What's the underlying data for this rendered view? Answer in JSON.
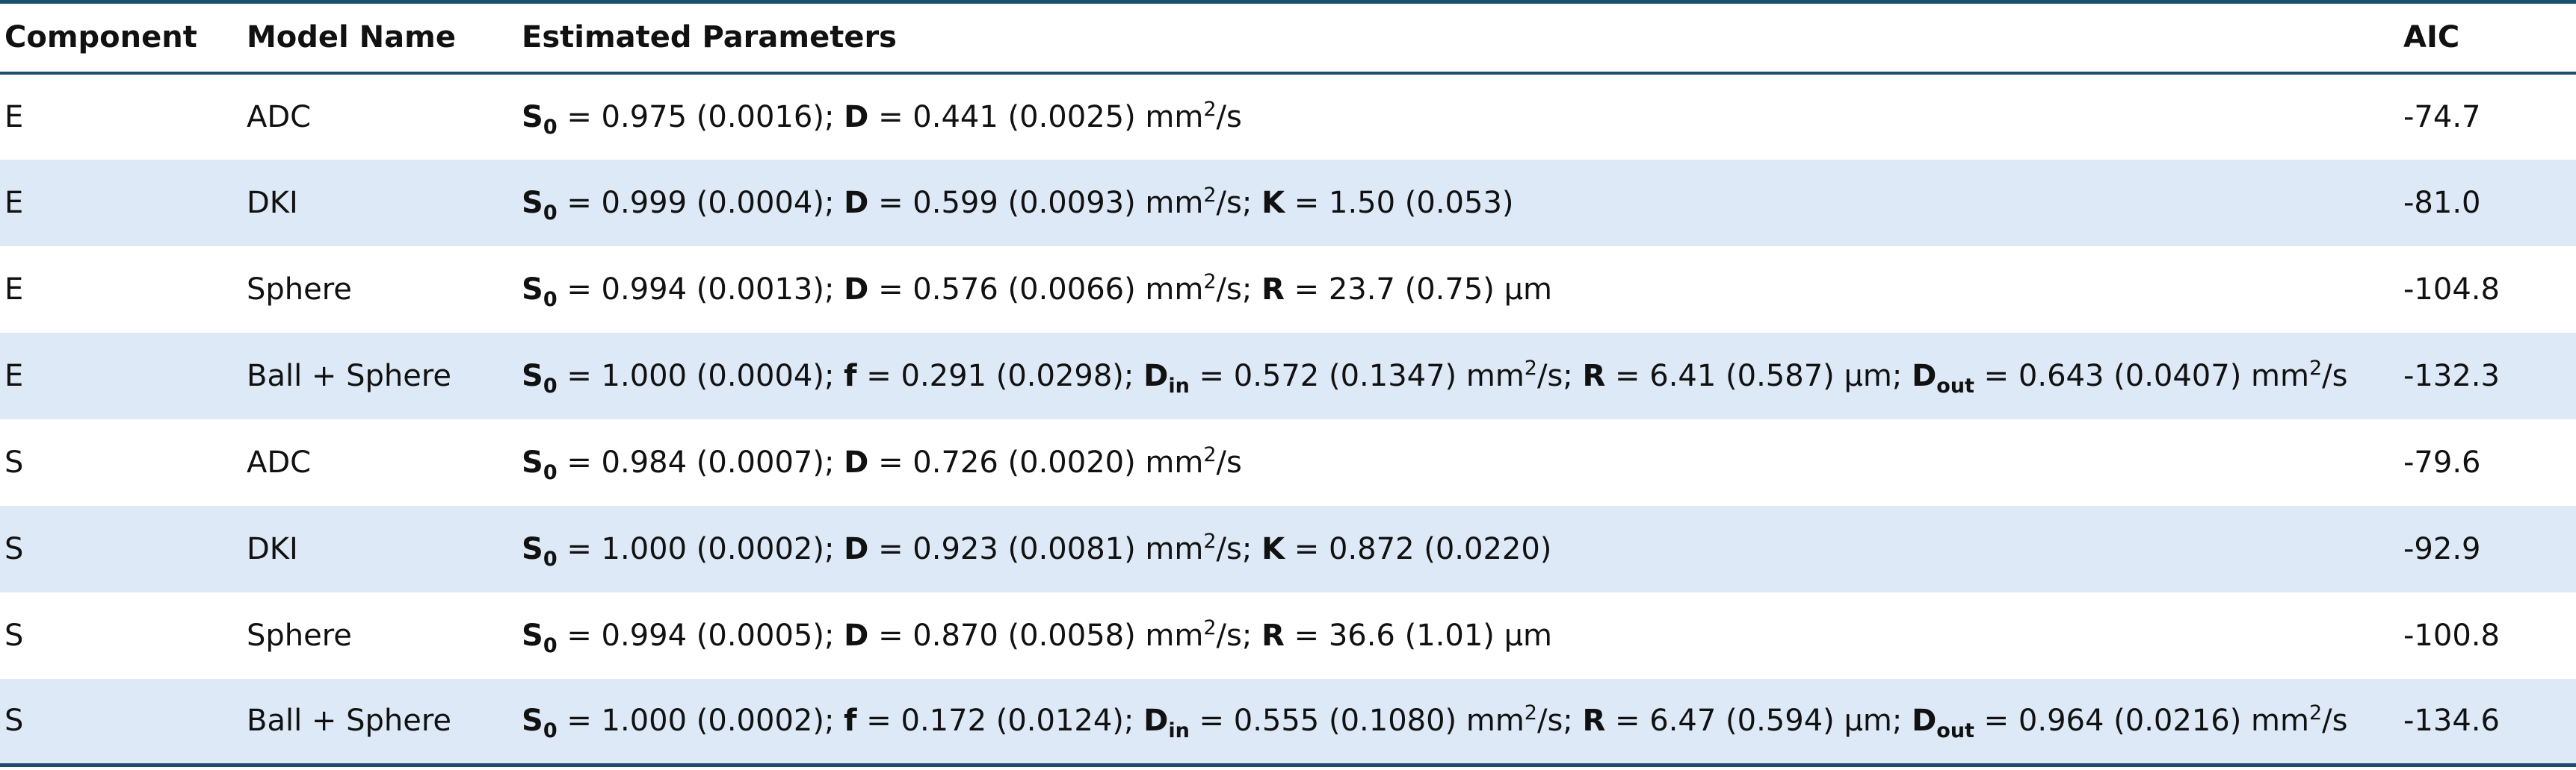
{
  "headers": {
    "component": "Component",
    "model": "Model Name",
    "params": "Estimated Parameters",
    "aic": "AIC"
  },
  "rows": [
    {
      "component": "E",
      "model": "ADC",
      "params": [
        {
          "b": "S",
          "sub": "0"
        },
        {
          "t": " = 0.975 (0.0016); "
        },
        {
          "b": "D"
        },
        {
          "t": " = 0.441 (0.0025) mm"
        },
        {
          "sup": "2"
        },
        {
          "t": "/s"
        }
      ],
      "aic": "-74.7"
    },
    {
      "component": "E",
      "model": "DKI",
      "params": [
        {
          "b": "S",
          "sub": "0"
        },
        {
          "t": " = 0.999 (0.0004); "
        },
        {
          "b": "D"
        },
        {
          "t": " = 0.599 (0.0093) mm"
        },
        {
          "sup": "2"
        },
        {
          "t": "/s; "
        },
        {
          "b": "K"
        },
        {
          "t": " = 1.50 (0.053)"
        }
      ],
      "aic": "-81.0"
    },
    {
      "component": "E",
      "model": "Sphere",
      "params": [
        {
          "b": "S",
          "sub": "0"
        },
        {
          "t": " = 0.994 (0.0013); "
        },
        {
          "b": "D"
        },
        {
          "t": " = 0.576 (0.0066) mm"
        },
        {
          "sup": "2"
        },
        {
          "t": "/s; "
        },
        {
          "b": "R"
        },
        {
          "t": " = 23.7 (0.75) μm"
        }
      ],
      "aic": "-104.8"
    },
    {
      "component": "E",
      "model": "Ball + Sphere",
      "params": [
        {
          "b": "S",
          "sub": "0"
        },
        {
          "t": " = 1.000 (0.0004); "
        },
        {
          "b": "f"
        },
        {
          "t": " = 0.291 (0.0298); "
        },
        {
          "b": "D",
          "sub": "in"
        },
        {
          "t": " = 0.572 (0.1347) mm"
        },
        {
          "sup": "2"
        },
        {
          "t": "/s; "
        },
        {
          "b": "R"
        },
        {
          "t": " = 6.41 (0.587) μm; "
        },
        {
          "b": "D",
          "sub": "out"
        },
        {
          "t": " = 0.643 (0.0407) mm"
        },
        {
          "sup": "2"
        },
        {
          "t": "/s"
        }
      ],
      "aic": "-132.3"
    },
    {
      "component": "S",
      "model": "ADC",
      "params": [
        {
          "b": "S",
          "sub": "0"
        },
        {
          "t": " = 0.984 (0.0007); "
        },
        {
          "b": "D"
        },
        {
          "t": " = 0.726 (0.0020) mm"
        },
        {
          "sup": "2"
        },
        {
          "t": "/s"
        }
      ],
      "aic": "-79.6"
    },
    {
      "component": "S",
      "model": "DKI",
      "params": [
        {
          "b": "S",
          "sub": "0"
        },
        {
          "t": " = 1.000 (0.0002); "
        },
        {
          "b": "D"
        },
        {
          "t": " = 0.923 (0.0081) mm"
        },
        {
          "sup": "2"
        },
        {
          "t": "/s; "
        },
        {
          "b": "K"
        },
        {
          "t": " = 0.872 (0.0220)"
        }
      ],
      "aic": "-92.9"
    },
    {
      "component": "S",
      "model": "Sphere",
      "params": [
        {
          "b": "S",
          "sub": "0"
        },
        {
          "t": " = 0.994 (0.0005); "
        },
        {
          "b": "D"
        },
        {
          "t": " = 0.870 (0.0058) mm"
        },
        {
          "sup": "2"
        },
        {
          "t": "/s; "
        },
        {
          "b": "R"
        },
        {
          "t": " = 36.6 (1.01) μm"
        }
      ],
      "aic": "-100.8"
    },
    {
      "component": "S",
      "model": "Ball + Sphere",
      "params": [
        {
          "b": "S",
          "sub": "0"
        },
        {
          "t": " = 1.000 (0.0002); "
        },
        {
          "b": "f"
        },
        {
          "t": " = 0.172 (0.0124); "
        },
        {
          "b": "D",
          "sub": "in"
        },
        {
          "t": " = 0.555 (0.1080) mm"
        },
        {
          "sup": "2"
        },
        {
          "t": "/s; "
        },
        {
          "b": "R"
        },
        {
          "t": " = 6.47 (0.594) μm; "
        },
        {
          "b": "D",
          "sub": "out"
        },
        {
          "t": " = 0.964 (0.0216) mm"
        },
        {
          "sup": "2"
        },
        {
          "t": "/s"
        }
      ],
      "aic": "-134.6"
    }
  ],
  "colors": {
    "rule": "#1c4f6e",
    "stripe": "#dde9f6",
    "text": "#111111"
  }
}
